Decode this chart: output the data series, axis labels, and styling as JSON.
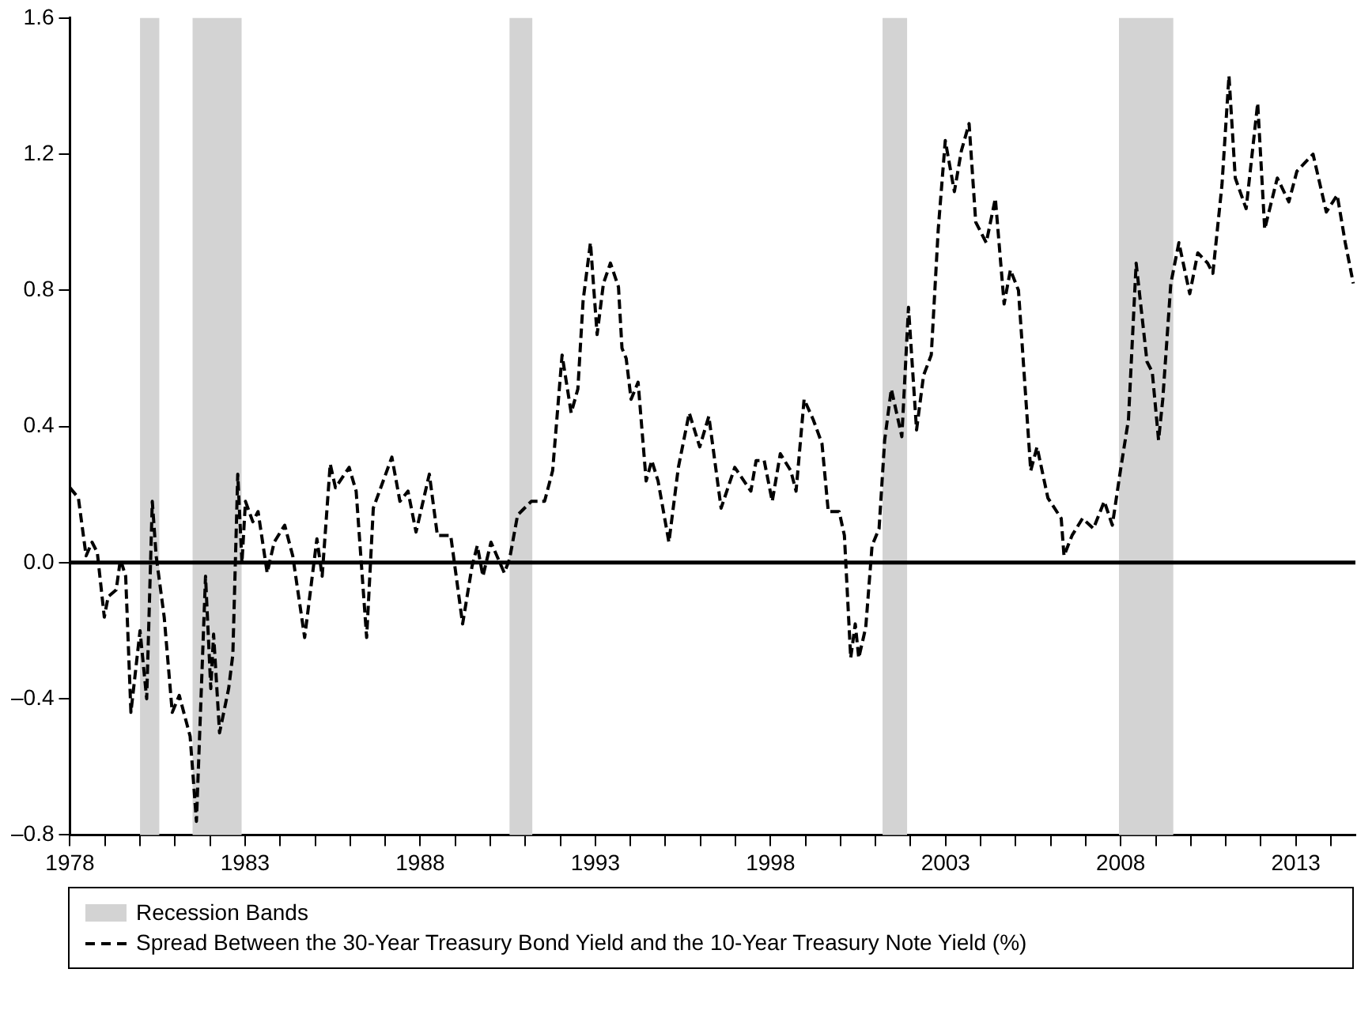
{
  "chart_data": {
    "type": "line",
    "legend": "bottom",
    "line_style": "dashed",
    "marker": "none",
    "grid": false,
    "xlim": [
      1978,
      2014.7
    ],
    "xticks": [
      {
        "value": 1978,
        "label": "1978"
      },
      {
        "value": 1979,
        "label": null
      },
      {
        "value": 1980,
        "label": null
      },
      {
        "value": 1981,
        "label": null
      },
      {
        "value": 1982,
        "label": null
      },
      {
        "value": 1983,
        "label": "1983"
      },
      {
        "value": 1984,
        "label": null
      },
      {
        "value": 1985,
        "label": null
      },
      {
        "value": 1986,
        "label": null
      },
      {
        "value": 1987,
        "label": null
      },
      {
        "value": 1988,
        "label": "1988"
      },
      {
        "value": 1989,
        "label": null
      },
      {
        "value": 1990,
        "label": null
      },
      {
        "value": 1991,
        "label": null
      },
      {
        "value": 1992,
        "label": null
      },
      {
        "value": 1993,
        "label": "1993"
      },
      {
        "value": 1994,
        "label": null
      },
      {
        "value": 1995,
        "label": null
      },
      {
        "value": 1996,
        "label": null
      },
      {
        "value": 1997,
        "label": null
      },
      {
        "value": 1998,
        "label": "1998"
      },
      {
        "value": 1999,
        "label": null
      },
      {
        "value": 2000,
        "label": null
      },
      {
        "value": 2001,
        "label": null
      },
      {
        "value": 2002,
        "label": null
      },
      {
        "value": 2003,
        "label": "2003"
      },
      {
        "value": 2004,
        "label": null
      },
      {
        "value": 2005,
        "label": null
      },
      {
        "value": 2006,
        "label": null
      },
      {
        "value": 2007,
        "label": null
      },
      {
        "value": 2008,
        "label": "2008"
      },
      {
        "value": 2009,
        "label": null
      },
      {
        "value": 2010,
        "label": null
      },
      {
        "value": 2011,
        "label": null
      },
      {
        "value": 2012,
        "label": null
      },
      {
        "value": 2013,
        "label": "2013"
      },
      {
        "value": 2014,
        "label": null
      }
    ],
    "ylim": [
      -0.8,
      1.6
    ],
    "yticks": [
      {
        "value": -0.8,
        "label": "–0.8"
      },
      {
        "value": -0.4,
        "label": "–0.4"
      },
      {
        "value": 0,
        "label": "0.0"
      },
      0.4,
      0.8,
      1.2,
      1.6
    ],
    "ref_lines": [
      {
        "axis": "y",
        "value": 0,
        "color": "#000000"
      }
    ],
    "bands": [
      {
        "axis": "x",
        "from": 1980.0,
        "to": 1980.55,
        "label": "Recession Bands",
        "color": "#d3d3d3"
      },
      {
        "axis": "x",
        "from": 1981.5,
        "to": 1982.9,
        "color": "#d3d3d3"
      },
      {
        "axis": "x",
        "from": 1990.55,
        "to": 1991.2,
        "color": "#d3d3d3"
      },
      {
        "axis": "x",
        "from": 2001.2,
        "to": 2001.9,
        "color": "#d3d3d3"
      },
      {
        "axis": "x",
        "from": 2007.95,
        "to": 2009.5,
        "color": "#d3d3d3"
      }
    ],
    "series": [
      {
        "name": "Spread Between the 30-Year Treasury Bond Yield and the 10-Year Treasury Note Yield (%)",
        "color": "#000000",
        "x": [
          1978.0,
          1978.24,
          1978.46,
          1978.63,
          1978.78,
          1978.98,
          1979.09,
          1979.32,
          1979.44,
          1979.59,
          1979.74,
          1980.0,
          1980.19,
          1980.35,
          1980.46,
          1980.69,
          1980.92,
          1981.12,
          1981.43,
          1981.61,
          1981.87,
          1982.02,
          1982.1,
          1982.27,
          1982.53,
          1982.65,
          1982.79,
          1982.91,
          1983.01,
          1983.22,
          1983.37,
          1983.63,
          1983.83,
          1984.13,
          1984.36,
          1984.7,
          1985.05,
          1985.2,
          1985.43,
          1985.58,
          1985.97,
          1986.17,
          1986.47,
          1986.66,
          1987.19,
          1987.42,
          1987.65,
          1987.88,
          1988.26,
          1988.49,
          1988.87,
          1989.21,
          1989.48,
          1989.63,
          1989.79,
          1990.02,
          1990.4,
          1990.55,
          1990.78,
          1991.17,
          1991.55,
          1991.78,
          1992.05,
          1992.31,
          1992.5,
          1992.65,
          1992.86,
          1993.05,
          1993.23,
          1993.43,
          1993.66,
          1993.76,
          1993.88,
          1994.02,
          1994.22,
          1994.45,
          1994.61,
          1994.79,
          1995.1,
          1995.37,
          1995.68,
          1995.98,
          1996.24,
          1996.59,
          1996.98,
          1997.44,
          1997.59,
          1997.82,
          1998.05,
          1998.28,
          1998.58,
          1998.73,
          1998.96,
          1999.22,
          1999.47,
          1999.65,
          1999.96,
          2000.11,
          2000.29,
          2000.42,
          2000.52,
          2000.72,
          2000.9,
          2001.1,
          2001.26,
          2001.45,
          2001.75,
          2001.94,
          2002.17,
          2002.37,
          2002.59,
          2002.79,
          2002.99,
          2003.25,
          2003.45,
          2003.67,
          2003.86,
          2004.16,
          2004.42,
          2004.67,
          2004.85,
          2005.08,
          2005.43,
          2005.61,
          2005.92,
          2006.3,
          2006.38,
          2006.61,
          2006.91,
          2007.22,
          2007.53,
          2007.76,
          2007.99,
          2008.22,
          2008.44,
          2008.75,
          2008.9,
          2009.08,
          2009.2,
          2009.43,
          2009.66,
          2009.97,
          2010.2,
          2010.48,
          2010.63,
          2010.89,
          2011.09,
          2011.27,
          2011.58,
          2011.91,
          2012.11,
          2012.47,
          2012.8,
          2013.03,
          2013.49,
          2013.87,
          2014.18,
          2014.41,
          2014.64
        ],
        "values": [
          0.22,
          0.19,
          0.02,
          0.06,
          0.03,
          -0.16,
          -0.1,
          -0.08,
          0.01,
          -0.04,
          -0.44,
          -0.2,
          -0.4,
          0.18,
          0.02,
          -0.16,
          -0.44,
          -0.39,
          -0.51,
          -0.76,
          -0.04,
          -0.37,
          -0.21,
          -0.5,
          -0.37,
          -0.27,
          0.26,
          0.0,
          0.18,
          0.12,
          0.15,
          -0.03,
          0.06,
          0.11,
          0.02,
          -0.22,
          0.07,
          -0.04,
          0.29,
          0.22,
          0.28,
          0.21,
          -0.22,
          0.16,
          0.31,
          0.18,
          0.21,
          0.09,
          0.26,
          0.08,
          0.08,
          -0.18,
          -0.01,
          0.05,
          -0.04,
          0.06,
          -0.03,
          0.01,
          0.14,
          0.18,
          0.18,
          0.27,
          0.61,
          0.44,
          0.51,
          0.77,
          0.94,
          0.67,
          0.82,
          0.88,
          0.81,
          0.63,
          0.6,
          0.48,
          0.53,
          0.24,
          0.3,
          0.24,
          0.06,
          0.28,
          0.44,
          0.34,
          0.43,
          0.16,
          0.28,
          0.21,
          0.3,
          0.3,
          0.18,
          0.32,
          0.27,
          0.21,
          0.48,
          0.42,
          0.35,
          0.15,
          0.15,
          0.08,
          -0.28,
          -0.18,
          -0.28,
          -0.19,
          0.05,
          0.1,
          0.36,
          0.51,
          0.37,
          0.75,
          0.39,
          0.55,
          0.61,
          0.98,
          1.24,
          1.09,
          1.21,
          1.29,
          1.0,
          0.94,
          1.07,
          0.76,
          0.86,
          0.8,
          0.27,
          0.34,
          0.19,
          0.13,
          0.02,
          0.08,
          0.13,
          0.1,
          0.18,
          0.11,
          0.27,
          0.42,
          0.88,
          0.59,
          0.56,
          0.36,
          0.48,
          0.82,
          0.94,
          0.79,
          0.91,
          0.88,
          0.85,
          1.11,
          1.43,
          1.13,
          1.04,
          1.35,
          0.98,
          1.13,
          1.06,
          1.15,
          1.2,
          1.03,
          1.08,
          0.94,
          0.82
        ]
      }
    ]
  }
}
